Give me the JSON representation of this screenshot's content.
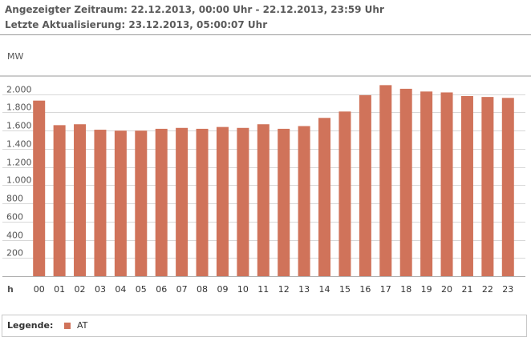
{
  "header": {
    "period": "Angezeigter Zeitraum: 22.12.2013, 00:00 Uhr - 22.12.2013, 23:59 Uhr",
    "updated": "Letzte Aktualisierung: 23.12.2013, 05:00:07 Uhr"
  },
  "legend": {
    "title": "Legende:",
    "items": [
      {
        "label": "AT",
        "color": "#d0735a"
      }
    ]
  },
  "chart_data": {
    "type": "bar",
    "title": "",
    "xlabel": "h",
    "ylabel": "MW",
    "ylim": [
      0,
      2200
    ],
    "yticks": [
      200,
      400,
      600,
      800,
      1000,
      1200,
      1400,
      1600,
      1800,
      2000
    ],
    "ytick_labels": [
      "200",
      "400",
      "600",
      "800",
      "1.000",
      "1.200",
      "1.400",
      "1.600",
      "1.800",
      "2.000"
    ],
    "grid": true,
    "categories": [
      "00",
      "01",
      "02",
      "03",
      "04",
      "05",
      "06",
      "07",
      "08",
      "09",
      "10",
      "11",
      "12",
      "13",
      "14",
      "15",
      "16",
      "17",
      "18",
      "19",
      "20",
      "21",
      "22",
      "23"
    ],
    "series": [
      {
        "name": "AT",
        "color": "#d0735a",
        "values": [
          1930,
          1660,
          1670,
          1610,
          1600,
          1600,
          1620,
          1630,
          1620,
          1640,
          1630,
          1670,
          1620,
          1650,
          1740,
          1810,
          1990,
          2100,
          2060,
          2030,
          2020,
          1980,
          1970,
          1960
        ]
      }
    ]
  }
}
